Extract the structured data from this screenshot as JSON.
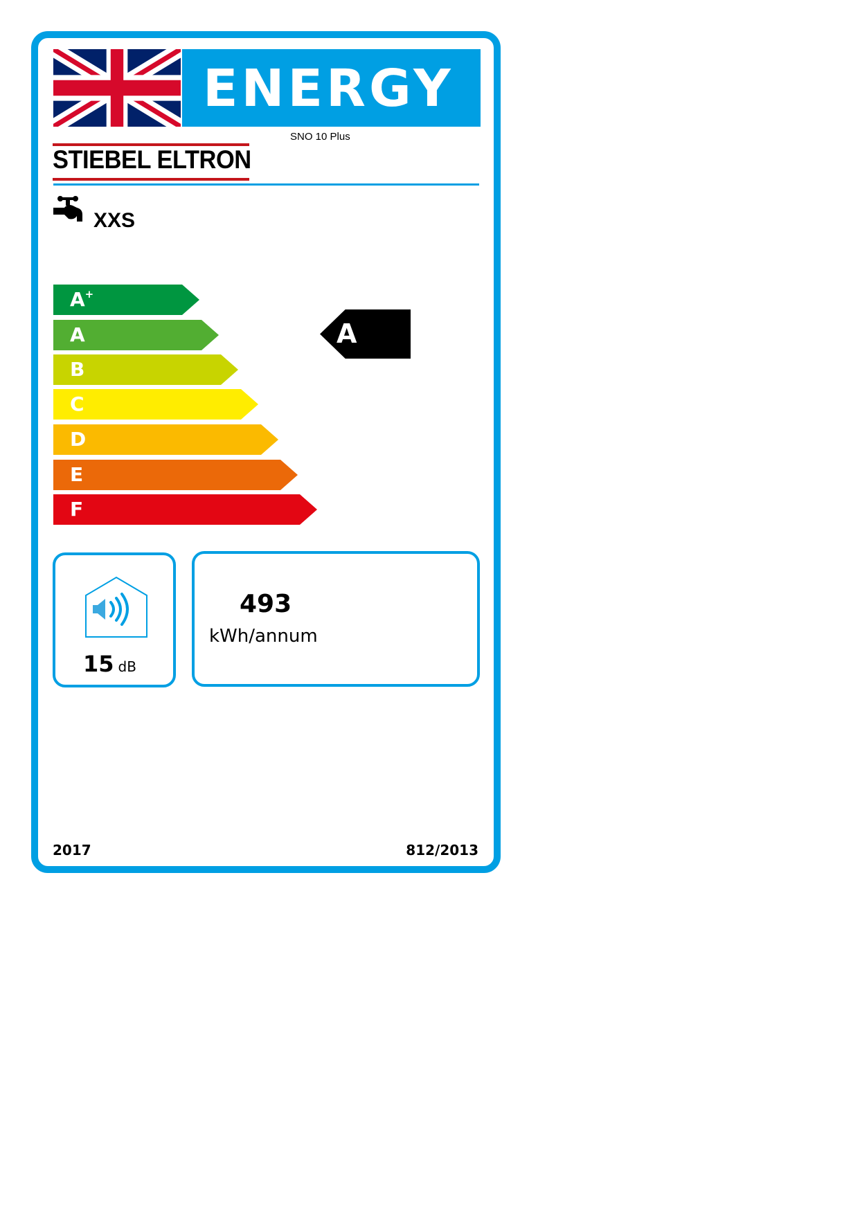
{
  "header": {
    "title": "ENERGY",
    "model": "SNO 10 Plus",
    "brand": "STIEBEL ELTRON"
  },
  "load_profile": {
    "icon": "tap-icon",
    "label": "XXS"
  },
  "scale": [
    {
      "class": "A",
      "sup": "+",
      "color": "#009640"
    },
    {
      "class": "A",
      "sup": "",
      "color": "#52ae32"
    },
    {
      "class": "B",
      "sup": "",
      "color": "#c8d400"
    },
    {
      "class": "C",
      "sup": "",
      "color": "#ffed00"
    },
    {
      "class": "D",
      "sup": "",
      "color": "#fbba00"
    },
    {
      "class": "E",
      "sup": "",
      "color": "#eb6909"
    },
    {
      "class": "F",
      "sup": "",
      "color": "#e30613"
    }
  ],
  "rating": {
    "class": "A"
  },
  "noise": {
    "value": "15",
    "unit": "dB",
    "icon": "sound-house-icon"
  },
  "energy": {
    "value": "493",
    "unit": "kWh/annum"
  },
  "footer": {
    "year": "2017",
    "regulation": "812/2013"
  },
  "colors": {
    "frame": "#009fe3",
    "brand_red": "#c4161c"
  }
}
